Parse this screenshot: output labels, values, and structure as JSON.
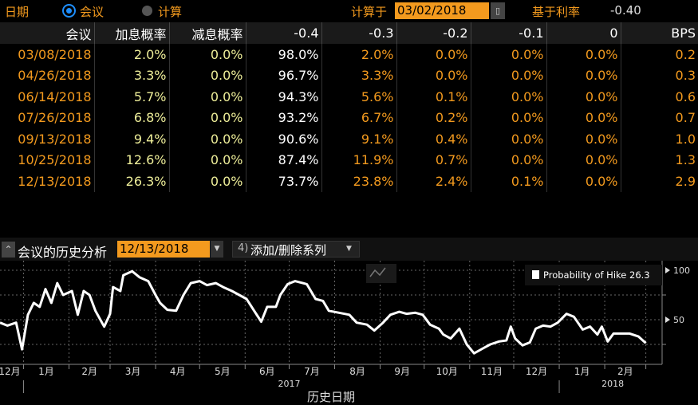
{
  "top": {
    "date_label": "日期",
    "radio_meeting": "会议",
    "radio_calc": "计算",
    "calc_at_label": "计算于",
    "calc_date": "03/02/2018",
    "base_rate_label": "基于利率",
    "base_rate": "-0.40",
    "calendar_icon": "calendar-icon"
  },
  "table": {
    "headers": [
      "会议",
      "加息概率",
      "减息概率",
      "-0.4",
      "-0.3",
      "-0.2",
      "-0.1",
      "0",
      "BPS"
    ],
    "rows": [
      [
        "03/08/2018",
        "2.0%",
        "0.0%",
        "98.0%",
        "2.0%",
        "0.0%",
        "0.0%",
        "0.0%",
        "0.2"
      ],
      [
        "04/26/2018",
        "3.3%",
        "0.0%",
        "96.7%",
        "3.3%",
        "0.0%",
        "0.0%",
        "0.0%",
        "0.3"
      ],
      [
        "06/14/2018",
        "5.7%",
        "0.0%",
        "94.3%",
        "5.6%",
        "0.1%",
        "0.0%",
        "0.0%",
        "0.6"
      ],
      [
        "07/26/2018",
        "6.8%",
        "0.0%",
        "93.2%",
        "6.7%",
        "0.2%",
        "0.0%",
        "0.0%",
        "0.7"
      ],
      [
        "09/13/2018",
        "9.4%",
        "0.0%",
        "90.6%",
        "9.1%",
        "0.4%",
        "0.0%",
        "0.0%",
        "1.0"
      ],
      [
        "10/25/2018",
        "12.6%",
        "0.0%",
        "87.4%",
        "11.9%",
        "0.7%",
        "0.0%",
        "0.0%",
        "1.3"
      ],
      [
        "12/13/2018",
        "26.3%",
        "0.0%",
        "73.7%",
        "23.8%",
        "2.4%",
        "0.1%",
        "0.0%",
        "2.9"
      ]
    ]
  },
  "colors": {
    "orange": "#f39a1e",
    "yellow": "#eeee99",
    "white": "#ffffff"
  },
  "history": {
    "title": "会议的历史分析",
    "meeting_date": "12/13/2018",
    "series_menu_num": "4)",
    "series_menu": "添加/删除系列"
  },
  "chart_data": {
    "type": "line",
    "xlabel": "历史日期",
    "ylim": [
      5,
      100
    ],
    "yticks": [
      "100",
      "50"
    ],
    "grid": true,
    "legend": "top-right",
    "legend_label": "Probability of Hike",
    "legend_value": "26.3",
    "month_labels": [
      "12月",
      "1月",
      "2月",
      "3月",
      "4月",
      "5月",
      "6月",
      "7月",
      "8月",
      "9月",
      "10月",
      "11月",
      "12月",
      "1月",
      "2月"
    ],
    "year_labels": [
      "2017",
      "2018"
    ],
    "series": [
      {
        "name": "Probability of Hike",
        "points": [
          [
            "2016-12-16",
            47
          ],
          [
            "2016-12-21",
            44
          ],
          [
            "2016-12-27",
            47
          ],
          [
            "2016-12-31",
            20
          ],
          [
            "2017-01-04",
            55
          ],
          [
            "2017-01-08",
            67
          ],
          [
            "2017-01-12",
            63
          ],
          [
            "2017-01-16",
            81
          ],
          [
            "2017-01-20",
            67
          ],
          [
            "2017-01-24",
            87
          ],
          [
            "2017-01-28",
            75
          ],
          [
            "2017-02-03",
            79
          ],
          [
            "2017-02-07",
            55
          ],
          [
            "2017-02-11",
            79
          ],
          [
            "2017-02-15",
            75
          ],
          [
            "2017-02-19",
            59
          ],
          [
            "2017-02-25",
            43
          ],
          [
            "2017-03-01",
            56
          ],
          [
            "2017-03-03",
            83
          ],
          [
            "2017-03-08",
            79
          ],
          [
            "2017-03-10",
            95
          ],
          [
            "2017-03-16",
            99
          ],
          [
            "2017-03-21",
            93
          ],
          [
            "2017-03-27",
            89
          ],
          [
            "2017-04-01",
            75
          ],
          [
            "2017-04-04",
            67
          ],
          [
            "2017-04-09",
            60
          ],
          [
            "2017-04-15",
            59
          ],
          [
            "2017-04-20",
            75
          ],
          [
            "2017-04-25",
            87
          ],
          [
            "2017-05-01",
            89
          ],
          [
            "2017-05-06",
            85
          ],
          [
            "2017-05-12",
            87
          ],
          [
            "2017-05-17",
            83
          ],
          [
            "2017-05-23",
            79
          ],
          [
            "2017-05-28",
            75
          ],
          [
            "2017-06-02",
            71
          ],
          [
            "2017-06-08",
            57
          ],
          [
            "2017-06-12",
            48
          ],
          [
            "2017-06-16",
            63
          ],
          [
            "2017-06-22",
            63
          ],
          [
            "2017-06-25",
            75
          ],
          [
            "2017-06-30",
            86
          ],
          [
            "2017-07-05",
            89
          ],
          [
            "2017-07-13",
            86
          ],
          [
            "2017-07-19",
            71
          ],
          [
            "2017-07-24",
            69
          ],
          [
            "2017-07-28",
            59
          ],
          [
            "2017-08-04",
            57
          ],
          [
            "2017-08-11",
            55
          ],
          [
            "2017-08-16",
            47
          ],
          [
            "2017-08-23",
            45
          ],
          [
            "2017-08-28",
            39
          ],
          [
            "2017-09-03",
            47
          ],
          [
            "2017-09-08",
            55
          ],
          [
            "2017-09-14",
            58
          ],
          [
            "2017-09-19",
            56
          ],
          [
            "2017-09-25",
            57
          ],
          [
            "2017-09-30",
            55
          ],
          [
            "2017-10-05",
            45
          ],
          [
            "2017-10-11",
            41
          ],
          [
            "2017-10-14",
            35
          ],
          [
            "2017-10-19",
            31
          ],
          [
            "2017-10-25",
            41
          ],
          [
            "2017-10-30",
            25
          ],
          [
            "2017-11-04",
            16
          ],
          [
            "2017-11-10",
            21
          ],
          [
            "2017-11-15",
            25
          ],
          [
            "2017-11-21",
            28
          ],
          [
            "2017-11-26",
            29
          ],
          [
            "2017-11-29",
            43
          ],
          [
            "2017-12-02",
            31
          ],
          [
            "2017-12-07",
            24
          ],
          [
            "2017-12-12",
            27
          ],
          [
            "2017-12-16",
            41
          ],
          [
            "2017-12-21",
            44
          ],
          [
            "2017-12-26",
            43
          ],
          [
            "2017-12-31",
            47
          ],
          [
            "2018-01-06",
            56
          ],
          [
            "2018-01-11",
            53
          ],
          [
            "2018-01-17",
            40
          ],
          [
            "2018-01-22",
            43
          ],
          [
            "2018-01-27",
            35
          ],
          [
            "2018-01-30",
            43
          ],
          [
            "2018-02-03",
            28
          ],
          [
            "2018-02-07",
            36
          ],
          [
            "2018-02-13",
            36
          ],
          [
            "2018-02-18",
            36
          ],
          [
            "2018-02-24",
            33
          ],
          [
            "2018-03-01",
            26.3
          ]
        ]
      }
    ]
  }
}
